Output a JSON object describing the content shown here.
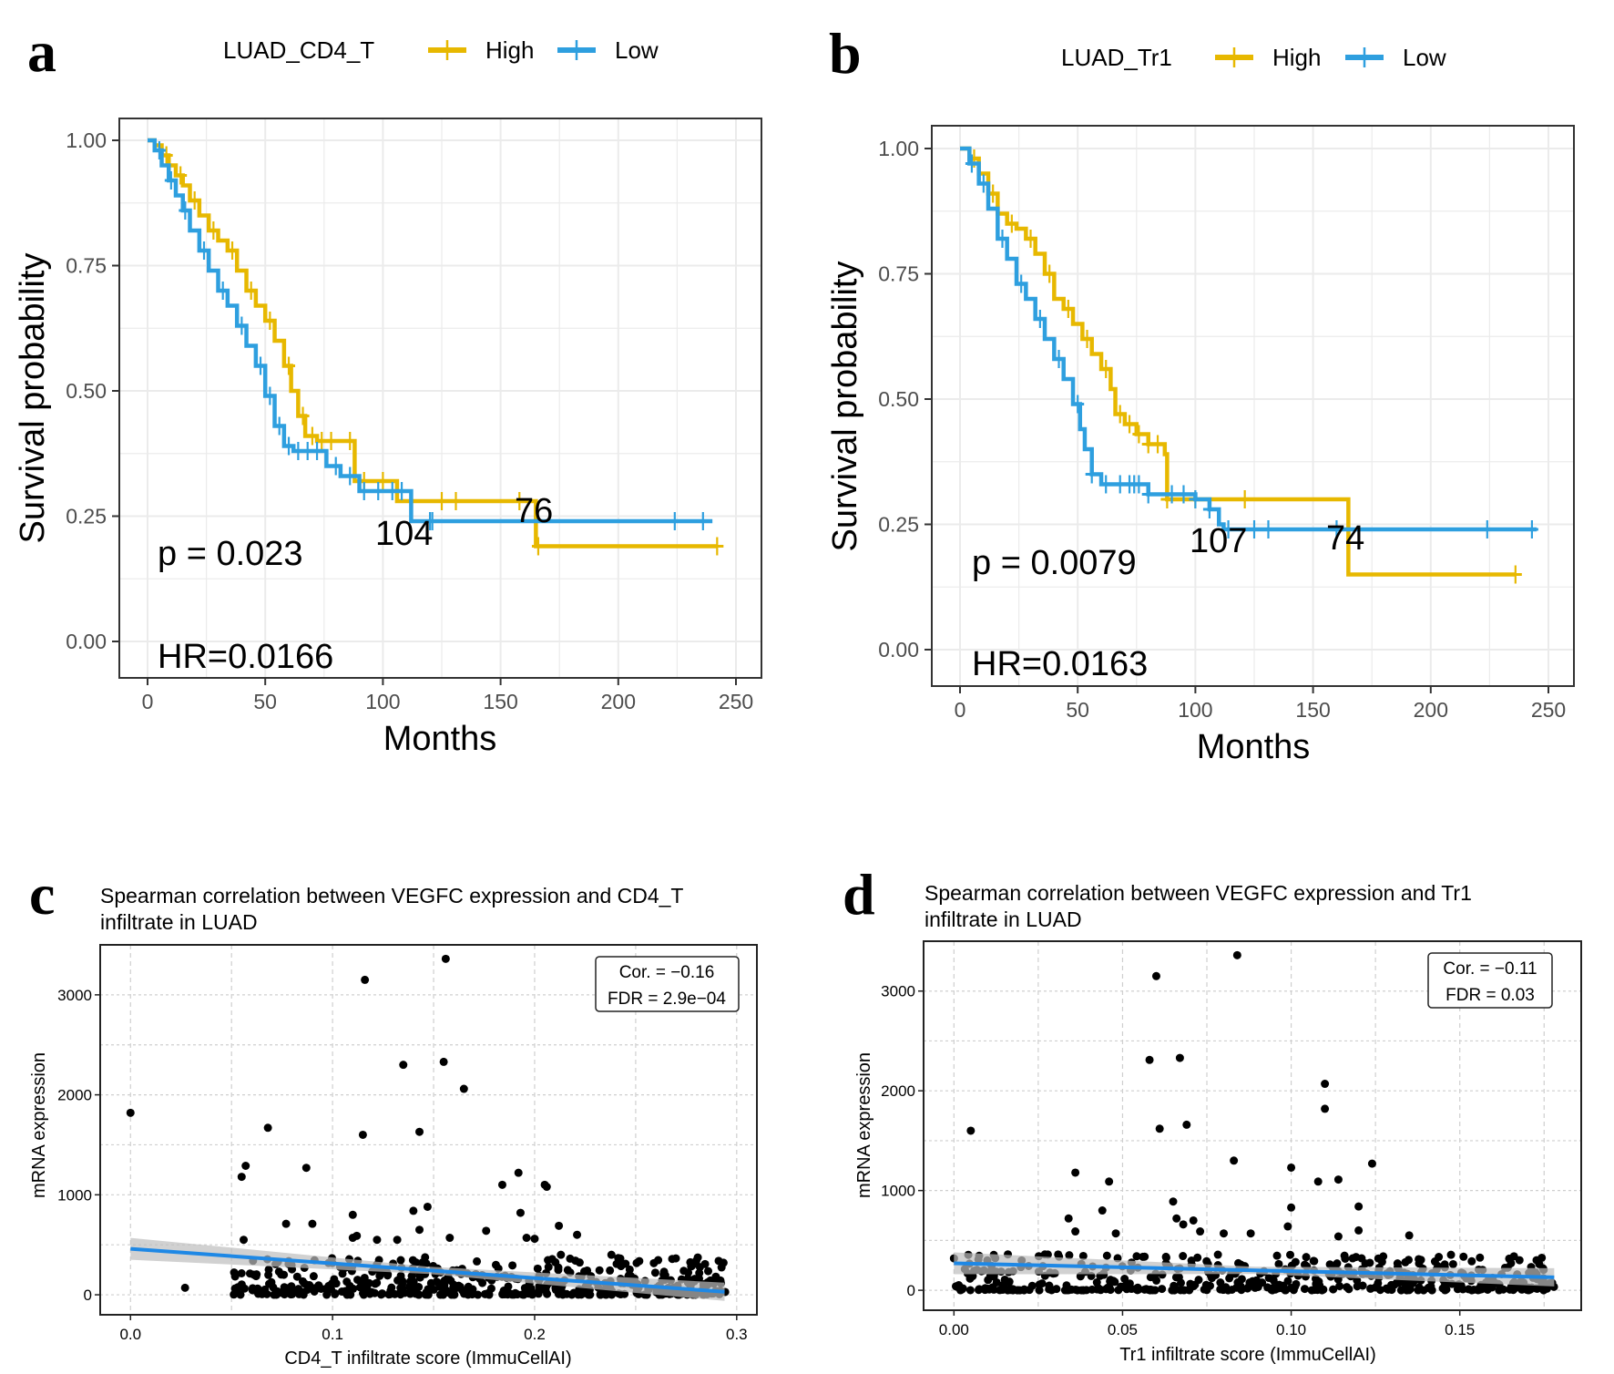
{
  "figure": {
    "panels": [
      "a",
      "b",
      "c",
      "d"
    ]
  },
  "colors": {
    "high": "#E7B800",
    "low": "#2E9FDF",
    "fit_line": "#1E88E5",
    "ci_band": "#BDBDBD",
    "points": "#000000"
  },
  "chart_data": [
    {
      "panel": "a",
      "type": "line",
      "subtype": "kaplan-meier",
      "legend_title": "LUAD_CD4_T",
      "legend": [
        "High",
        "Low"
      ],
      "legend_position": "top",
      "xlabel": "Months",
      "ylabel": "Survival probability",
      "xlim": [
        0,
        250
      ],
      "ylim": [
        0,
        1
      ],
      "xticks": [
        "0",
        "50",
        "100",
        "150",
        "200",
        "250"
      ],
      "yticks": [
        "0.00",
        "0.25",
        "0.50",
        "0.75",
        "1.00"
      ],
      "grid": true,
      "annotations": {
        "p": "p = 0.023",
        "hr": "HR=0.0166"
      },
      "risk_labels": [
        {
          "text": "104",
          "x": 108,
          "y": 0.24
        },
        {
          "text": "76",
          "x": 160,
          "y": 0.28
        }
      ],
      "series": [
        {
          "name": "High",
          "points": [
            [
              0,
              1.0
            ],
            [
              3,
              0.99
            ],
            [
              6,
              0.97
            ],
            [
              9,
              0.95
            ],
            [
              12,
              0.93
            ],
            [
              15,
              0.91
            ],
            [
              18,
              0.88
            ],
            [
              22,
              0.85
            ],
            [
              26,
              0.82
            ],
            [
              30,
              0.8
            ],
            [
              34,
              0.78
            ],
            [
              38,
              0.74
            ],
            [
              42,
              0.7
            ],
            [
              46,
              0.67
            ],
            [
              50,
              0.64
            ],
            [
              54,
              0.6
            ],
            [
              58,
              0.55
            ],
            [
              61,
              0.5
            ],
            [
              64,
              0.45
            ],
            [
              67,
              0.41
            ],
            [
              72,
              0.4
            ],
            [
              80,
              0.4
            ],
            [
              88,
              0.4
            ],
            [
              88,
              0.32
            ],
            [
              97,
              0.32
            ],
            [
              106,
              0.28
            ],
            [
              150,
              0.28
            ],
            [
              165,
              0.28
            ],
            [
              165,
              0.19
            ],
            [
              242,
              0.19
            ]
          ],
          "censor": [
            8,
            14,
            20,
            28,
            36,
            44,
            52,
            60,
            66,
            70,
            74,
            78,
            86,
            92,
            100,
            112,
            125,
            131,
            158,
            166,
            242
          ]
        },
        {
          "name": "Low",
          "points": [
            [
              0,
              1.0
            ],
            [
              3,
              0.98
            ],
            [
              6,
              0.95
            ],
            [
              9,
              0.92
            ],
            [
              12,
              0.89
            ],
            [
              15,
              0.86
            ],
            [
              18,
              0.82
            ],
            [
              22,
              0.78
            ],
            [
              26,
              0.74
            ],
            [
              30,
              0.7
            ],
            [
              34,
              0.67
            ],
            [
              38,
              0.63
            ],
            [
              42,
              0.59
            ],
            [
              46,
              0.55
            ],
            [
              50,
              0.49
            ],
            [
              54,
              0.43
            ],
            [
              58,
              0.39
            ],
            [
              62,
              0.38
            ],
            [
              72,
              0.38
            ],
            [
              76,
              0.35
            ],
            [
              82,
              0.33
            ],
            [
              90,
              0.3
            ],
            [
              100,
              0.3
            ],
            [
              112,
              0.3
            ],
            [
              112,
              0.24
            ],
            [
              240,
              0.24
            ]
          ],
          "censor": [
            5,
            10,
            16,
            24,
            32,
            40,
            48,
            52,
            56,
            60,
            64,
            68,
            72,
            80,
            86,
            92,
            98,
            104,
            108,
            120,
            121,
            224,
            236
          ]
        }
      ]
    },
    {
      "panel": "b",
      "type": "line",
      "subtype": "kaplan-meier",
      "legend_title": "LUAD_Tr1",
      "legend": [
        "High",
        "Low"
      ],
      "legend_position": "top",
      "xlabel": "Months",
      "ylabel": "Survival probability",
      "xlim": [
        0,
        250
      ],
      "ylim": [
        0,
        1
      ],
      "xticks": [
        "0",
        "50",
        "100",
        "150",
        "200",
        "250"
      ],
      "yticks": [
        "0.00",
        "0.25",
        "0.50",
        "0.75",
        "1.00"
      ],
      "grid": true,
      "annotations": {
        "p": "p = 0.0079",
        "hr": "HR=0.0163"
      },
      "risk_labels": [
        {
          "text": "107",
          "x": 107,
          "y": 0.24
        },
        {
          "text": "74",
          "x": 160,
          "y": 0.24
        }
      ],
      "series": [
        {
          "name": "High",
          "points": [
            [
              0,
              1.0
            ],
            [
              4,
              0.98
            ],
            [
              8,
              0.95
            ],
            [
              12,
              0.91
            ],
            [
              16,
              0.87
            ],
            [
              20,
              0.85
            ],
            [
              24,
              0.84
            ],
            [
              28,
              0.82
            ],
            [
              32,
              0.79
            ],
            [
              36,
              0.75
            ],
            [
              40,
              0.7
            ],
            [
              44,
              0.68
            ],
            [
              48,
              0.65
            ],
            [
              52,
              0.62
            ],
            [
              56,
              0.59
            ],
            [
              60,
              0.56
            ],
            [
              64,
              0.52
            ],
            [
              66,
              0.47
            ],
            [
              70,
              0.45
            ],
            [
              75,
              0.43
            ],
            [
              80,
              0.41
            ],
            [
              87,
              0.39
            ],
            [
              88,
              0.3
            ],
            [
              100,
              0.3
            ],
            [
              165,
              0.3
            ],
            [
              165,
              0.15
            ],
            [
              236,
              0.15
            ]
          ],
          "censor": [
            6,
            14,
            22,
            30,
            38,
            46,
            54,
            62,
            68,
            72,
            76,
            80,
            84,
            88,
            100,
            121,
            236
          ]
        },
        {
          "name": "Low",
          "points": [
            [
              0,
              1.0
            ],
            [
              4,
              0.97
            ],
            [
              8,
              0.93
            ],
            [
              12,
              0.88
            ],
            [
              16,
              0.82
            ],
            [
              20,
              0.78
            ],
            [
              24,
              0.73
            ],
            [
              28,
              0.7
            ],
            [
              32,
              0.66
            ],
            [
              36,
              0.62
            ],
            [
              40,
              0.58
            ],
            [
              44,
              0.54
            ],
            [
              48,
              0.49
            ],
            [
              51,
              0.44
            ],
            [
              53,
              0.4
            ],
            [
              56,
              0.35
            ],
            [
              60,
              0.33
            ],
            [
              78,
              0.33
            ],
            [
              80,
              0.31
            ],
            [
              88,
              0.31
            ],
            [
              100,
              0.3
            ],
            [
              106,
              0.28
            ],
            [
              110,
              0.25
            ],
            [
              112,
              0.24
            ],
            [
              245,
              0.24
            ]
          ],
          "censor": [
            5,
            10,
            18,
            26,
            34,
            42,
            50,
            56,
            62,
            68,
            72,
            74,
            76,
            80,
            90,
            95,
            100,
            106,
            114,
            125,
            131,
            160,
            224,
            243
          ]
        }
      ]
    },
    {
      "panel": "c",
      "type": "scatter",
      "title": "Spearman correlation between VEGFC expression and CD4_T",
      "title_line2": "infiltrate in LUAD",
      "xlabel": "CD4_T infiltrate score (ImmuCellAI)",
      "ylabel": "mRNA expression",
      "xlim": [
        -0.015,
        0.31
      ],
      "ylim": [
        -200,
        3500
      ],
      "xticks": [
        "0.0",
        "0.1",
        "0.2",
        "0.3"
      ],
      "yticks": [
        "0",
        "1000",
        "2000",
        "3000"
      ],
      "grid": true,
      "stats_box": {
        "cor": "Cor. = −0.16",
        "fdr": "FDR = 2.9e−04"
      },
      "fit_line": {
        "x": [
          0.0,
          0.294
        ],
        "y": [
          460,
          30
        ]
      },
      "outliers": [
        [
          0.0,
          1820
        ],
        [
          0.116,
          3150
        ],
        [
          0.156,
          3360
        ],
        [
          0.135,
          2300
        ],
        [
          0.155,
          2330
        ],
        [
          0.165,
          2060
        ],
        [
          0.068,
          1670
        ],
        [
          0.115,
          1600
        ],
        [
          0.143,
          1630
        ],
        [
          0.055,
          1180
        ],
        [
          0.057,
          1290
        ],
        [
          0.087,
          1270
        ],
        [
          0.192,
          1220
        ],
        [
          0.205,
          1100
        ],
        [
          0.206,
          1080
        ],
        [
          0.184,
          1100
        ],
        [
          0.147,
          880
        ],
        [
          0.14,
          840
        ],
        [
          0.11,
          800
        ],
        [
          0.193,
          820
        ],
        [
          0.077,
          710
        ],
        [
          0.09,
          710
        ],
        [
          0.212,
          690
        ],
        [
          0.143,
          650
        ],
        [
          0.176,
          640
        ],
        [
          0.221,
          600
        ],
        [
          0.11,
          570
        ],
        [
          0.112,
          590
        ],
        [
          0.056,
          550
        ],
        [
          0.122,
          550
        ],
        [
          0.132,
          550
        ],
        [
          0.158,
          570
        ],
        [
          0.2,
          560
        ],
        [
          0.196,
          570
        ],
        [
          0.245,
          310
        ],
        [
          0.238,
          400
        ],
        [
          0.28,
          340
        ],
        [
          0.213,
          400
        ],
        [
          0.027,
          70
        ]
      ],
      "cluster": {
        "x_range": [
          0.05,
          0.295
        ],
        "y_range": [
          0,
          380
        ],
        "description": "dense cloud of ~500 samples near the bottom"
      }
    },
    {
      "panel": "d",
      "type": "scatter",
      "title": "Spearman correlation between VEGFC expression and Tr1",
      "title_line2": "infiltrate in LUAD",
      "xlabel": "Tr1 infiltrate score (ImmuCellAI)",
      "ylabel": "mRNA expression",
      "xlim": [
        -0.009,
        0.186
      ],
      "ylim": [
        -200,
        3500
      ],
      "xticks": [
        "0.00",
        "0.05",
        "0.10",
        "0.15"
      ],
      "yticks": [
        "0",
        "1000",
        "2000",
        "3000"
      ],
      "grid": true,
      "stats_box": {
        "cor": "Cor. = −0.11",
        "fdr": "FDR = 0.03"
      },
      "fit_line": {
        "x": [
          0.0,
          0.178
        ],
        "y": [
          270,
          130
        ]
      },
      "outliers": [
        [
          0.06,
          3150
        ],
        [
          0.084,
          3360
        ],
        [
          0.058,
          2310
        ],
        [
          0.067,
          2330
        ],
        [
          0.11,
          2070
        ],
        [
          0.11,
          1820
        ],
        [
          0.005,
          1600
        ],
        [
          0.061,
          1620
        ],
        [
          0.069,
          1660
        ],
        [
          0.083,
          1300
        ],
        [
          0.036,
          1180
        ],
        [
          0.1,
          1230
        ],
        [
          0.124,
          1270
        ],
        [
          0.046,
          1090
        ],
        [
          0.108,
          1090
        ],
        [
          0.114,
          1110
        ],
        [
          0.065,
          890
        ],
        [
          0.1,
          830
        ],
        [
          0.12,
          840
        ],
        [
          0.044,
          800
        ],
        [
          0.034,
          720
        ],
        [
          0.066,
          720
        ],
        [
          0.071,
          700
        ],
        [
          0.068,
          660
        ],
        [
          0.099,
          640
        ],
        [
          0.036,
          590
        ],
        [
          0.073,
          590
        ],
        [
          0.048,
          570
        ],
        [
          0.08,
          570
        ],
        [
          0.088,
          570
        ],
        [
          0.114,
          540
        ],
        [
          0.12,
          600
        ],
        [
          0.135,
          550
        ],
        [
          0.016,
          360
        ],
        [
          0.0,
          320
        ]
      ],
      "cluster": {
        "x_range": [
          0.0,
          0.178
        ],
        "y_range": [
          0,
          360
        ],
        "description": "dense cloud of ~500 samples near the bottom"
      }
    }
  ],
  "labels": {
    "a": {
      "letter": "a",
      "legend_title": "LUAD_CD4_T",
      "high": "High",
      "low": "Low",
      "xlabel": "Months",
      "ylabel": "Survival probability",
      "p": "p = 0.023",
      "hr": "HR=0.0166",
      "risk1": "104",
      "risk2": "76"
    },
    "b": {
      "letter": "b",
      "legend_title": "LUAD_Tr1",
      "high": "High",
      "low": "Low",
      "xlabel": "Months",
      "ylabel": "Survival probability",
      "p": "p = 0.0079",
      "hr": "HR=0.0163",
      "risk1": "107",
      "risk2": "74"
    },
    "c": {
      "letter": "c",
      "title1": "Spearman correlation between VEGFC expression and CD4_T",
      "title2": "infiltrate in LUAD",
      "xlabel": "CD4_T infiltrate score (ImmuCellAI)",
      "ylabel": "mRNA expression",
      "cor": "Cor. = −0.16",
      "fdr": "FDR = 2.9e−04"
    },
    "d": {
      "letter": "d",
      "title1": "Spearman correlation between VEGFC expression and Tr1",
      "title2": "infiltrate in LUAD",
      "xlabel": "Tr1 infiltrate score (ImmuCellAI)",
      "ylabel": "mRNA expression",
      "cor": "Cor. = −0.11",
      "fdr": "FDR = 0.03"
    }
  },
  "ticks": {
    "km_x": [
      "0",
      "50",
      "100",
      "150",
      "200",
      "250"
    ],
    "km_y": [
      "0.00",
      "0.25",
      "0.50",
      "0.75",
      "1.00"
    ],
    "c_x": [
      "0.0",
      "0.1",
      "0.2",
      "0.3"
    ],
    "d_x": [
      "0.00",
      "0.05",
      "0.10",
      "0.15"
    ],
    "sc_y": [
      "0",
      "1000",
      "2000",
      "3000"
    ]
  }
}
